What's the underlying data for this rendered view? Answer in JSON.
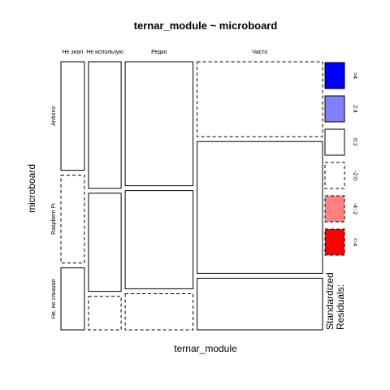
{
  "chart_data": {
    "type": "mosaic",
    "title": "ternar_module ~ microboard",
    "xlabel": "ternar_module",
    "ylabel": "microboard",
    "columns": [
      "Не знал",
      "Не использую",
      "Редко",
      "Часто"
    ],
    "rows": [
      "Arduino",
      "Raspberri Pi",
      "Не, не слышал"
    ],
    "column_proportions": [
      0.094,
      0.131,
      0.272,
      0.503
    ],
    "conditional_row_proportions": [
      [
        0.42,
        0.34,
        0.24
      ],
      [
        0.49,
        0.38,
        0.13
      ],
      [
        0.48,
        0.38,
        0.14
      ],
      [
        0.29,
        0.51,
        0.2
      ]
    ],
    "residual_class": [
      [
        "0:2",
        "-2:0",
        "0:2"
      ],
      [
        "0:2",
        "0:2",
        "-2:0"
      ],
      [
        "0:2",
        "0:2",
        "-2:0"
      ],
      [
        "-2:0",
        "0:2",
        "0:2"
      ]
    ],
    "legend": {
      "title_line1": "Standardized",
      "title_line2": "Residuals:",
      "entries": [
        {
          "label": ">4",
          "fill": "#0000ff",
          "dashed": false
        },
        {
          "label": "2:4",
          "fill": "#8080ff",
          "dashed": false
        },
        {
          "label": "0:2",
          "fill": "#ffffff",
          "dashed": false
        },
        {
          "label": "-2:0",
          "fill": "#ffffff",
          "dashed": true
        },
        {
          "label": "-4:-2",
          "fill": "#ff8080",
          "dashed": true
        },
        {
          "label": "<-4",
          "fill": "#ff0000",
          "dashed": true
        }
      ]
    }
  }
}
